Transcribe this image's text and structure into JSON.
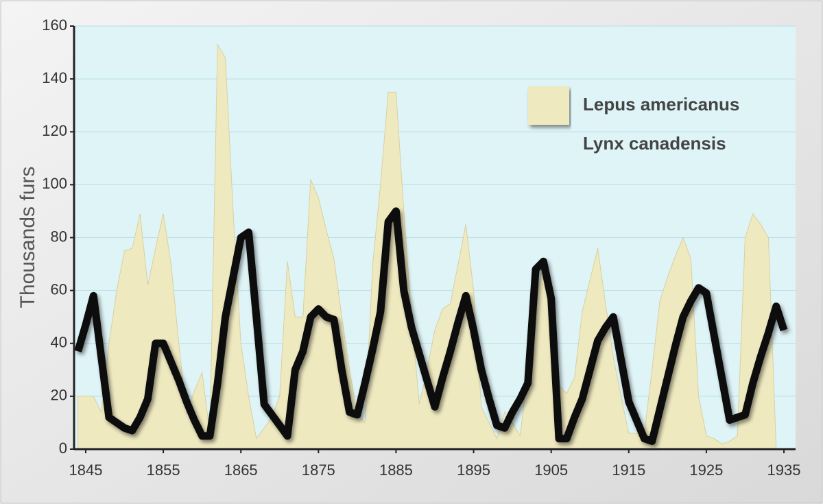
{
  "chart_data": {
    "type": "area-line",
    "y_label": "Thousands furs",
    "x": [
      1844,
      1845,
      1846,
      1847,
      1848,
      1849,
      1850,
      1851,
      1852,
      1853,
      1854,
      1855,
      1856,
      1857,
      1858,
      1859,
      1860,
      1861,
      1862,
      1863,
      1864,
      1865,
      1866,
      1867,
      1868,
      1869,
      1870,
      1871,
      1872,
      1873,
      1874,
      1875,
      1876,
      1877,
      1878,
      1879,
      1880,
      1881,
      1882,
      1883,
      1884,
      1885,
      1886,
      1887,
      1888,
      1889,
      1890,
      1891,
      1892,
      1893,
      1894,
      1895,
      1896,
      1897,
      1898,
      1899,
      1900,
      1901,
      1902,
      1903,
      1904,
      1905,
      1906,
      1907,
      1908,
      1909,
      1910,
      1911,
      1912,
      1913,
      1914,
      1915,
      1916,
      1917,
      1918,
      1919,
      1920,
      1921,
      1922,
      1923,
      1924,
      1925,
      1926,
      1927,
      1928,
      1929,
      1930,
      1931,
      1932,
      1933,
      1934,
      1935
    ],
    "series": [
      {
        "name": "Lepus americanus",
        "kind": "area",
        "color": "#efe9c0",
        "values": [
          20,
          20,
          20,
          14,
          40,
          60,
          75,
          76,
          89,
          62,
          76,
          89,
          70,
          40,
          13,
          22,
          29,
          6,
          153,
          148,
          90,
          40,
          20,
          4,
          8,
          12,
          20,
          71,
          50,
          50,
          102,
          95,
          83,
          72,
          50,
          30,
          13,
          10,
          70,
          100,
          135,
          135,
          90,
          50,
          17,
          30,
          45,
          53,
          55,
          70,
          85,
          60,
          16,
          10,
          4,
          14,
          10,
          5,
          30,
          56,
          70,
          60,
          24,
          21,
          27,
          52,
          64,
          76,
          55,
          35,
          20,
          6,
          6,
          6,
          30,
          56,
          65,
          73,
          80,
          72,
          20,
          5,
          4,
          2,
          3,
          5,
          80,
          89,
          85,
          80,
          0,
          null
        ]
      },
      {
        "name": "Lynx canadensis",
        "kind": "line",
        "color": "#111111",
        "values": [
          37,
          47,
          58,
          35,
          12,
          10,
          8,
          7,
          12,
          19,
          40,
          40,
          33,
          26,
          18,
          11,
          5,
          5,
          25,
          50,
          65,
          80,
          82,
          50,
          17,
          13,
          9,
          5,
          30,
          37,
          50,
          53,
          50,
          49,
          30,
          14,
          13,
          25,
          38,
          52,
          86,
          90,
          60,
          46,
          36,
          26,
          16,
          27,
          37,
          48,
          58,
          45,
          30,
          19,
          9,
          8,
          14,
          19,
          25,
          68,
          71,
          57,
          4,
          4,
          12,
          19,
          30,
          41,
          46,
          50,
          34,
          18,
          11,
          4,
          3,
          15,
          27,
          39,
          50,
          56,
          61,
          59,
          43,
          27,
          11,
          12,
          13,
          25,
          35,
          44,
          54,
          45
        ]
      }
    ],
    "xlim": [
      1843.5,
      1936.5
    ],
    "xticks": [
      1845,
      1855,
      1865,
      1875,
      1885,
      1895,
      1905,
      1915,
      1925,
      1935
    ],
    "ylim": [
      0,
      160
    ],
    "yticks": [
      0,
      20,
      40,
      60,
      80,
      100,
      120,
      140,
      160
    ],
    "grid": true,
    "plot_background": "#dff4f7",
    "legend": "upper right"
  }
}
